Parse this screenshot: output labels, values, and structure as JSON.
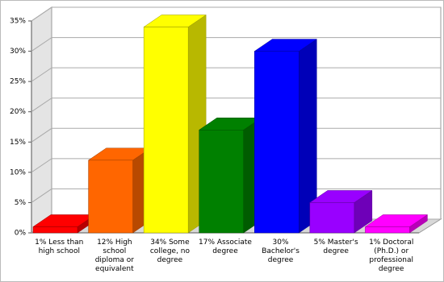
{
  "chart_data": {
    "type": "bar3d",
    "categories": [
      "1% Less than high school",
      "12% High school diploma or equivalent",
      "34% Some college, no degree",
      "17% Associate degree",
      "30% Bachelor's degree",
      "5% Master's degree",
      "1% Doctoral (Ph.D.) or professional degree"
    ],
    "values": [
      1,
      12,
      34,
      17,
      30,
      5,
      1
    ],
    "colors": [
      "#ff0000",
      "#ff6600",
      "#ffff00",
      "#008000",
      "#0000ff",
      "#9900ff",
      "#ff00ff"
    ],
    "ylim": [
      0,
      35
    ],
    "yticks": [
      {
        "value": 0,
        "label": "0%"
      },
      {
        "value": 5,
        "label": "5%"
      },
      {
        "value": 10,
        "label": "10%"
      },
      {
        "value": 15,
        "label": "15%"
      },
      {
        "value": 20,
        "label": "20%"
      },
      {
        "value": 25,
        "label": "25%"
      },
      {
        "value": 30,
        "label": "30%"
      },
      {
        "value": 35,
        "label": "35%"
      }
    ],
    "grid": true
  }
}
